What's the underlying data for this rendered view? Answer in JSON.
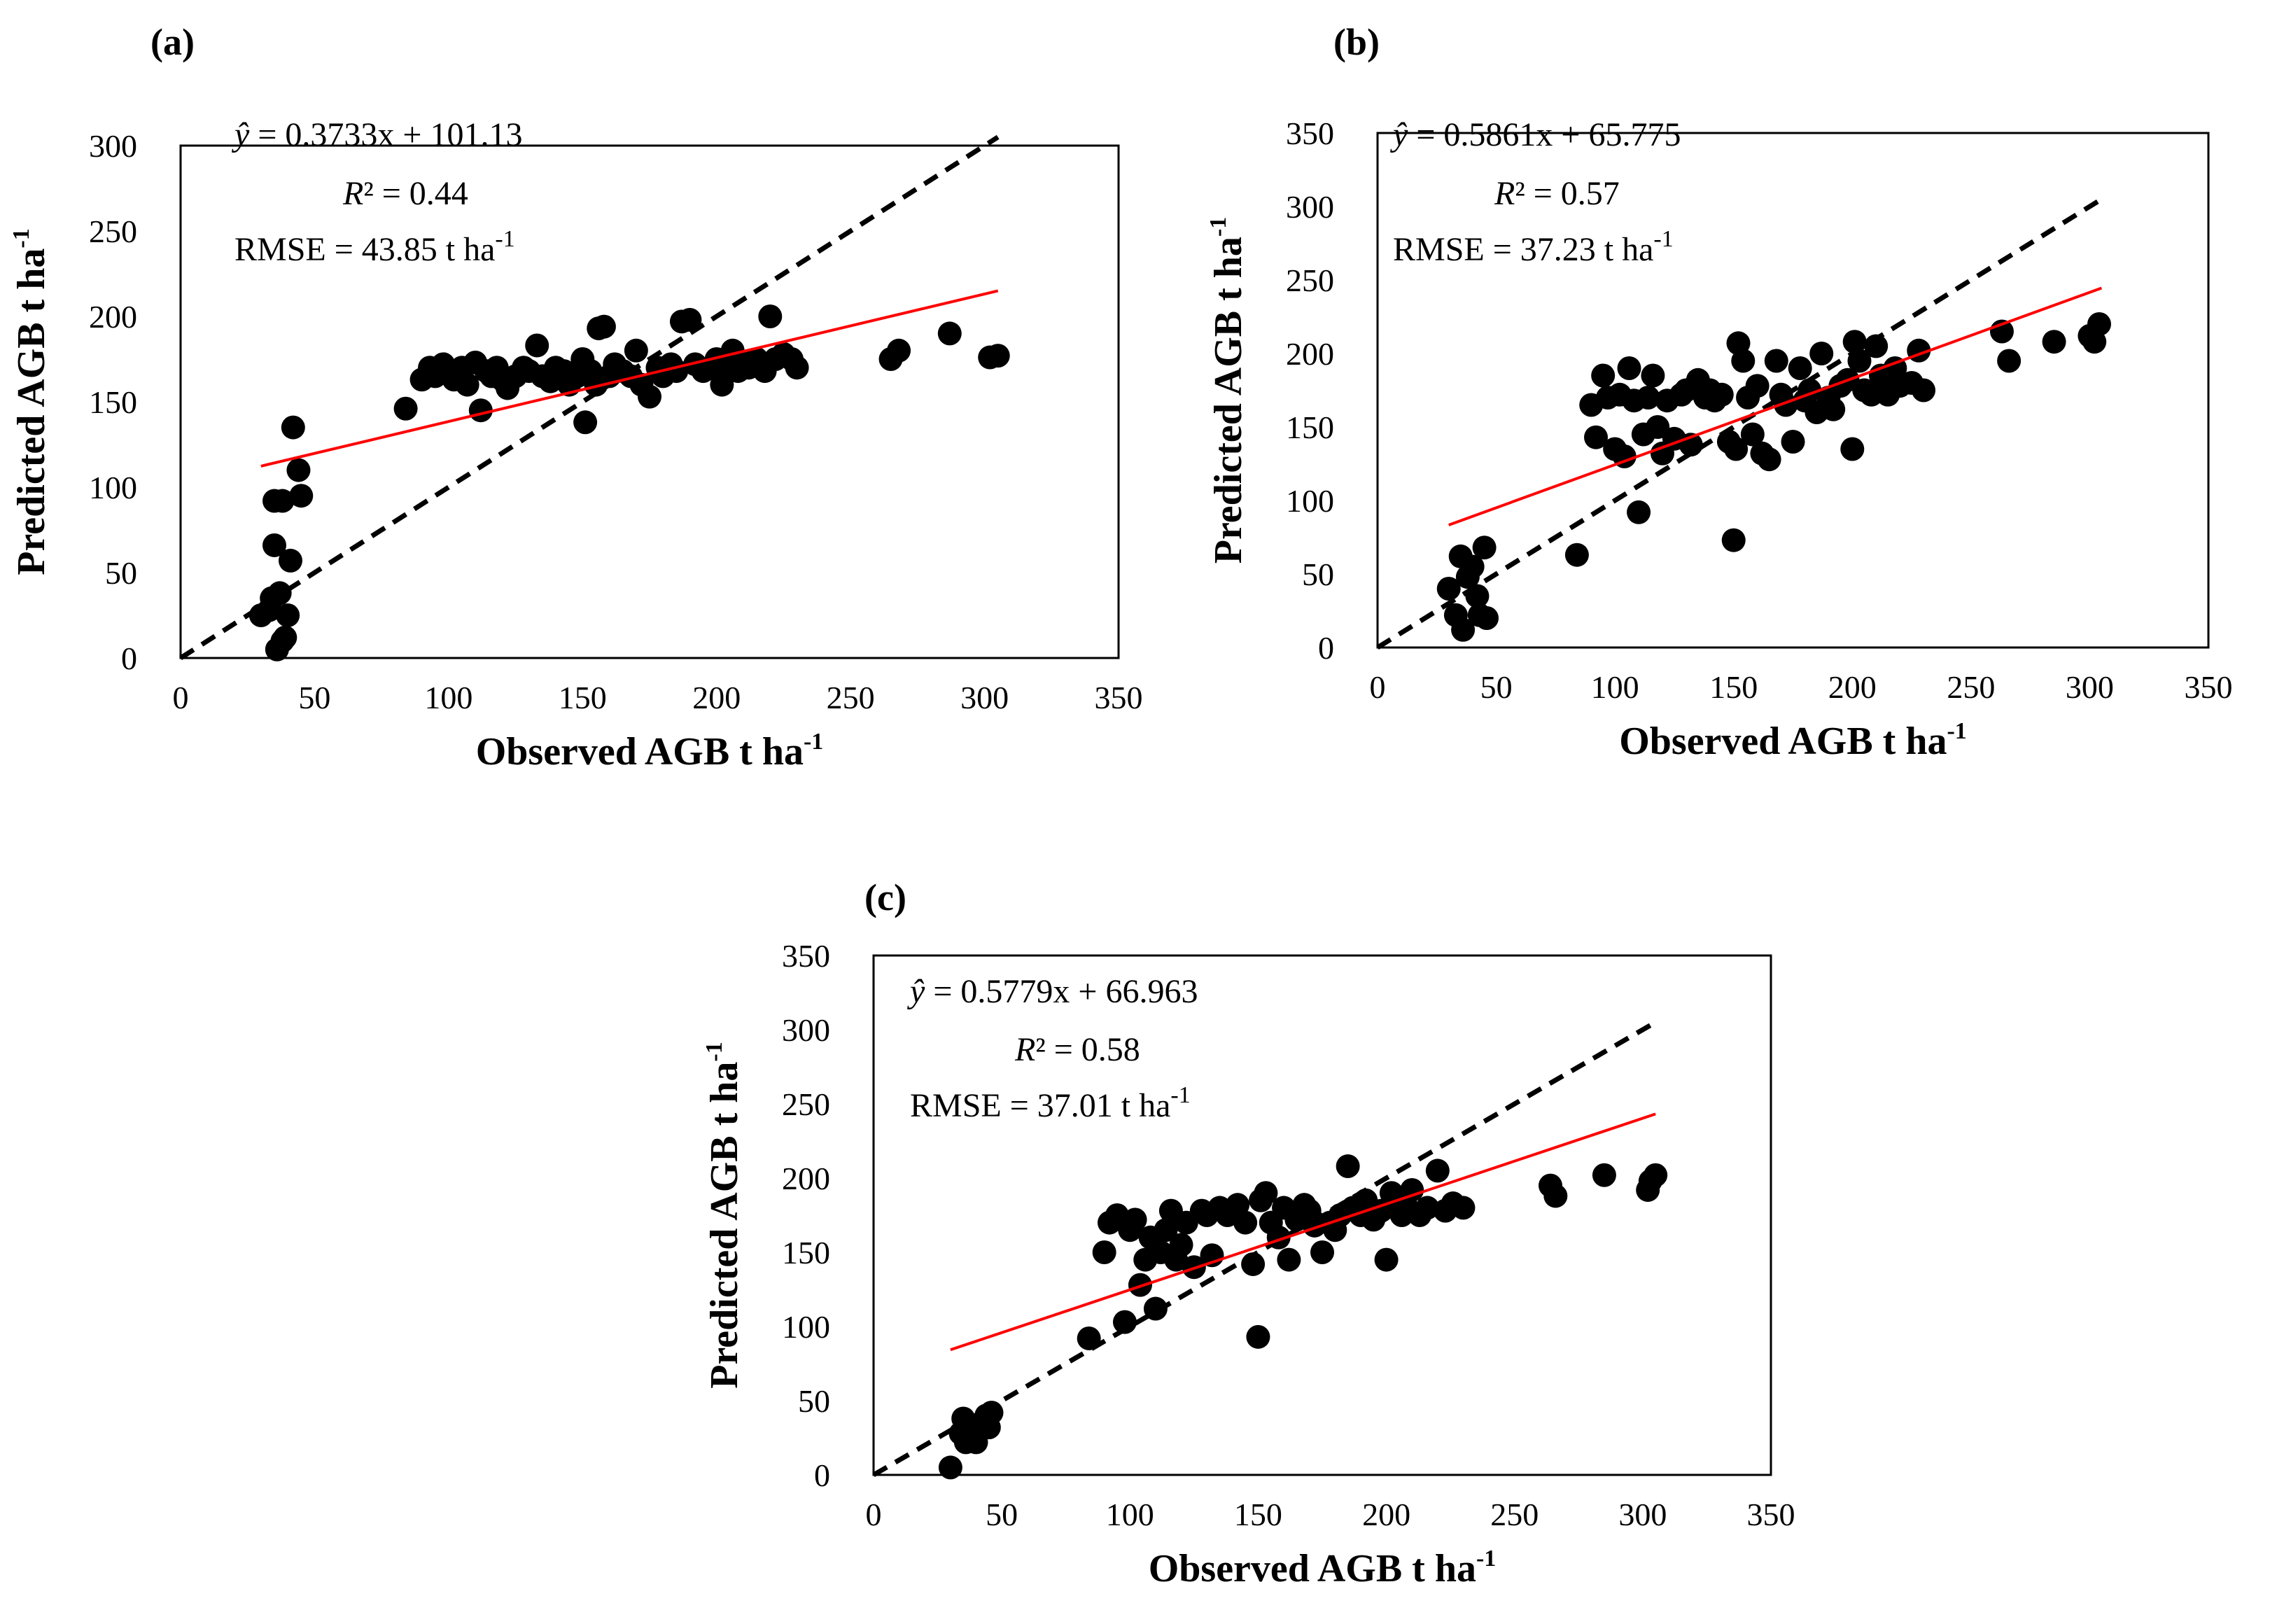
{
  "chart_data": [
    {
      "type": "scatter",
      "panel_label": "(a)",
      "xlabel": "Observed AGB t ha",
      "xlabel_sup": "-1",
      "ylabel": "Predicted AGB t ha",
      "ylabel_sup": "-1",
      "xlim": [
        0,
        350
      ],
      "ylim": [
        0,
        300
      ],
      "xticks": [
        "0",
        "50",
        "100",
        "150",
        "200",
        "250",
        "300",
        "350"
      ],
      "yticks": [
        "0",
        "50",
        "100",
        "150",
        "200",
        "250",
        "300"
      ],
      "grid": false,
      "annotations": {
        "equation_y": "ŷ",
        "equation_rest": " = 0.3733x + 101.13",
        "r2_label": "R",
        "r2_rest": "² = 0.44",
        "rmse": "RMSE = 43.85  t ha",
        "rmse_sup": "-1"
      },
      "fit_line": {
        "slope": 0.3733,
        "intercept": 101.13,
        "x_range": [
          30,
          305
        ],
        "color": "#ff0000"
      },
      "identity_line": {
        "x_range": [
          0,
          305
        ]
      },
      "points": [
        [
          30,
          25
        ],
        [
          33,
          28
        ],
        [
          34,
          35
        ],
        [
          35,
          92
        ],
        [
          35,
          66
        ],
        [
          36,
          5
        ],
        [
          37,
          38
        ],
        [
          38,
          92
        ],
        [
          38,
          10
        ],
        [
          39,
          12
        ],
        [
          40,
          25
        ],
        [
          41,
          57
        ],
        [
          42,
          135
        ],
        [
          44,
          110
        ],
        [
          45,
          95
        ],
        [
          84,
          146
        ],
        [
          90,
          163
        ],
        [
          93,
          170
        ],
        [
          95,
          165
        ],
        [
          98,
          172
        ],
        [
          100,
          168
        ],
        [
          102,
          163
        ],
        [
          105,
          170
        ],
        [
          107,
          160
        ],
        [
          110,
          173
        ],
        [
          112,
          145
        ],
        [
          114,
          168
        ],
        [
          116,
          165
        ],
        [
          118,
          170
        ],
        [
          120,
          163
        ],
        [
          122,
          158
        ],
        [
          125,
          165
        ],
        [
          128,
          170
        ],
        [
          130,
          168
        ],
        [
          133,
          183
        ],
        [
          135,
          165
        ],
        [
          138,
          162
        ],
        [
          140,
          170
        ],
        [
          143,
          168
        ],
        [
          145,
          160
        ],
        [
          148,
          165
        ],
        [
          150,
          175
        ],
        [
          151,
          138
        ],
        [
          153,
          168
        ],
        [
          155,
          160
        ],
        [
          156,
          193
        ],
        [
          158,
          194
        ],
        [
          160,
          165
        ],
        [
          162,
          172
        ],
        [
          165,
          168
        ],
        [
          168,
          165
        ],
        [
          170,
          180
        ],
        [
          172,
          160
        ],
        [
          175,
          153
        ],
        [
          178,
          170
        ],
        [
          180,
          165
        ],
        [
          183,
          172
        ],
        [
          185,
          168
        ],
        [
          187,
          197
        ],
        [
          190,
          198
        ],
        [
          192,
          172
        ],
        [
          195,
          168
        ],
        [
          198,
          170
        ],
        [
          200,
          175
        ],
        [
          202,
          160
        ],
        [
          204,
          172
        ],
        [
          206,
          180
        ],
        [
          208,
          168
        ],
        [
          210,
          173
        ],
        [
          212,
          170
        ],
        [
          215,
          175
        ],
        [
          218,
          168
        ],
        [
          220,
          200
        ],
        [
          222,
          175
        ],
        [
          225,
          178
        ],
        [
          228,
          175
        ],
        [
          230,
          170
        ],
        [
          265,
          175
        ],
        [
          268,
          180
        ],
        [
          287,
          190
        ],
        [
          302,
          176
        ],
        [
          305,
          177
        ]
      ]
    },
    {
      "type": "scatter",
      "panel_label": "(b)",
      "xlabel": "Observed AGB t ha",
      "xlabel_sup": "-1",
      "ylabel": "Predicted AGB t ha",
      "ylabel_sup": "-1",
      "xlim": [
        0,
        350
      ],
      "ylim": [
        0,
        350
      ],
      "xticks": [
        "0",
        "50",
        "100",
        "150",
        "200",
        "250",
        "300",
        "350"
      ],
      "yticks": [
        "0",
        "50",
        "100",
        "150",
        "200",
        "250",
        "300",
        "350"
      ],
      "grid": false,
      "annotations": {
        "equation_y": "ŷ",
        "equation_rest": " = 0.5861x + 65.775",
        "r2_label": "R",
        "r2_rest": "² = 0.57",
        "rmse": "RMSE = 37.23 t ha",
        "rmse_sup": "-1"
      },
      "fit_line": {
        "slope": 0.5861,
        "intercept": 65.775,
        "x_range": [
          30,
          305
        ],
        "color": "#ff0000"
      },
      "identity_line": {
        "x_range": [
          0,
          305
        ]
      },
      "points": [
        [
          30,
          40
        ],
        [
          33,
          22
        ],
        [
          35,
          62
        ],
        [
          36,
          12
        ],
        [
          38,
          48
        ],
        [
          40,
          55
        ],
        [
          42,
          35
        ],
        [
          43,
          22
        ],
        [
          45,
          68
        ],
        [
          46,
          20
        ],
        [
          84,
          63
        ],
        [
          90,
          165
        ],
        [
          92,
          143
        ],
        [
          95,
          185
        ],
        [
          97,
          170
        ],
        [
          100,
          135
        ],
        [
          102,
          172
        ],
        [
          104,
          130
        ],
        [
          106,
          190
        ],
        [
          108,
          168
        ],
        [
          110,
          92
        ],
        [
          112,
          145
        ],
        [
          114,
          170
        ],
        [
          116,
          185
        ],
        [
          118,
          150
        ],
        [
          120,
          132
        ],
        [
          122,
          168
        ],
        [
          125,
          142
        ],
        [
          128,
          172
        ],
        [
          130,
          175
        ],
        [
          132,
          138
        ],
        [
          135,
          182
        ],
        [
          138,
          170
        ],
        [
          140,
          175
        ],
        [
          142,
          168
        ],
        [
          145,
          172
        ],
        [
          148,
          140
        ],
        [
          150,
          73
        ],
        [
          151,
          135
        ],
        [
          152,
          207
        ],
        [
          154,
          195
        ],
        [
          156,
          170
        ],
        [
          158,
          145
        ],
        [
          160,
          178
        ],
        [
          162,
          132
        ],
        [
          165,
          128
        ],
        [
          168,
          195
        ],
        [
          170,
          172
        ],
        [
          172,
          165
        ],
        [
          175,
          140
        ],
        [
          178,
          190
        ],
        [
          180,
          168
        ],
        [
          182,
          175
        ],
        [
          185,
          160
        ],
        [
          187,
          200
        ],
        [
          190,
          170
        ],
        [
          192,
          162
        ],
        [
          195,
          178
        ],
        [
          198,
          182
        ],
        [
          200,
          135
        ],
        [
          201,
          208
        ],
        [
          203,
          195
        ],
        [
          205,
          175
        ],
        [
          208,
          172
        ],
        [
          210,
          205
        ],
        [
          212,
          185
        ],
        [
          215,
          172
        ],
        [
          218,
          190
        ],
        [
          220,
          178
        ],
        [
          225,
          180
        ],
        [
          228,
          202
        ],
        [
          230,
          175
        ],
        [
          263,
          215
        ],
        [
          266,
          195
        ],
        [
          285,
          208
        ],
        [
          300,
          212
        ],
        [
          302,
          208
        ],
        [
          304,
          220
        ]
      ]
    },
    {
      "type": "scatter",
      "panel_label": "(c)",
      "xlabel": "Observed AGB t ha",
      "xlabel_sup": "-1",
      "ylabel": "Predicted AGB t ha",
      "ylabel_sup": "-1",
      "xlim": [
        0,
        350
      ],
      "ylim": [
        0,
        350
      ],
      "xticks": [
        "0",
        "50",
        "100",
        "150",
        "200",
        "250",
        "300",
        "350"
      ],
      "yticks": [
        "0",
        "50",
        "100",
        "150",
        "200",
        "250",
        "300",
        "350"
      ],
      "grid": false,
      "annotations": {
        "equation_y": "ŷ",
        "equation_rest": " = 0.5779x + 66.963",
        "r2_label": "R",
        "r2_rest": "² = 0.58",
        "rmse": "RMSE = 37.01 t ha",
        "rmse_sup": "-1"
      },
      "fit_line": {
        "slope": 0.5779,
        "intercept": 66.963,
        "x_range": [
          30,
          305
        ],
        "color": "#ff0000"
      },
      "identity_line": {
        "x_range": [
          0,
          305
        ]
      },
      "points": [
        [
          30,
          5
        ],
        [
          34,
          28
        ],
        [
          35,
          38
        ],
        [
          36,
          22
        ],
        [
          38,
          30
        ],
        [
          40,
          22
        ],
        [
          42,
          35
        ],
        [
          44,
          40
        ],
        [
          45,
          32
        ],
        [
          46,
          42
        ],
        [
          84,
          92
        ],
        [
          90,
          150
        ],
        [
          92,
          170
        ],
        [
          95,
          175
        ],
        [
          98,
          103
        ],
        [
          100,
          165
        ],
        [
          102,
          172
        ],
        [
          104,
          128
        ],
        [
          106,
          145
        ],
        [
          108,
          160
        ],
        [
          110,
          112
        ],
        [
          112,
          150
        ],
        [
          114,
          165
        ],
        [
          116,
          178
        ],
        [
          118,
          145
        ],
        [
          120,
          155
        ],
        [
          122,
          170
        ],
        [
          125,
          140
        ],
        [
          128,
          178
        ],
        [
          130,
          175
        ],
        [
          132,
          148
        ],
        [
          135,
          180
        ],
        [
          138,
          175
        ],
        [
          140,
          178
        ],
        [
          142,
          182
        ],
        [
          145,
          170
        ],
        [
          148,
          142
        ],
        [
          150,
          93
        ],
        [
          151,
          185
        ],
        [
          153,
          190
        ],
        [
          155,
          170
        ],
        [
          158,
          160
        ],
        [
          160,
          180
        ],
        [
          162,
          145
        ],
        [
          165,
          172
        ],
        [
          168,
          182
        ],
        [
          170,
          178
        ],
        [
          172,
          168
        ],
        [
          175,
          150
        ],
        [
          178,
          170
        ],
        [
          180,
          165
        ],
        [
          182,
          175
        ],
        [
          185,
          208
        ],
        [
          187,
          180
        ],
        [
          190,
          175
        ],
        [
          192,
          185
        ],
        [
          195,
          172
        ],
        [
          198,
          178
        ],
        [
          200,
          145
        ],
        [
          202,
          190
        ],
        [
          204,
          182
        ],
        [
          206,
          175
        ],
        [
          208,
          180
        ],
        [
          210,
          192
        ],
        [
          213,
          175
        ],
        [
          216,
          180
        ],
        [
          220,
          205
        ],
        [
          223,
          178
        ],
        [
          226,
          183
        ],
        [
          230,
          180
        ],
        [
          264,
          195
        ],
        [
          266,
          188
        ],
        [
          285,
          202
        ],
        [
          302,
          192
        ],
        [
          303,
          198
        ],
        [
          305,
          202
        ]
      ]
    }
  ]
}
